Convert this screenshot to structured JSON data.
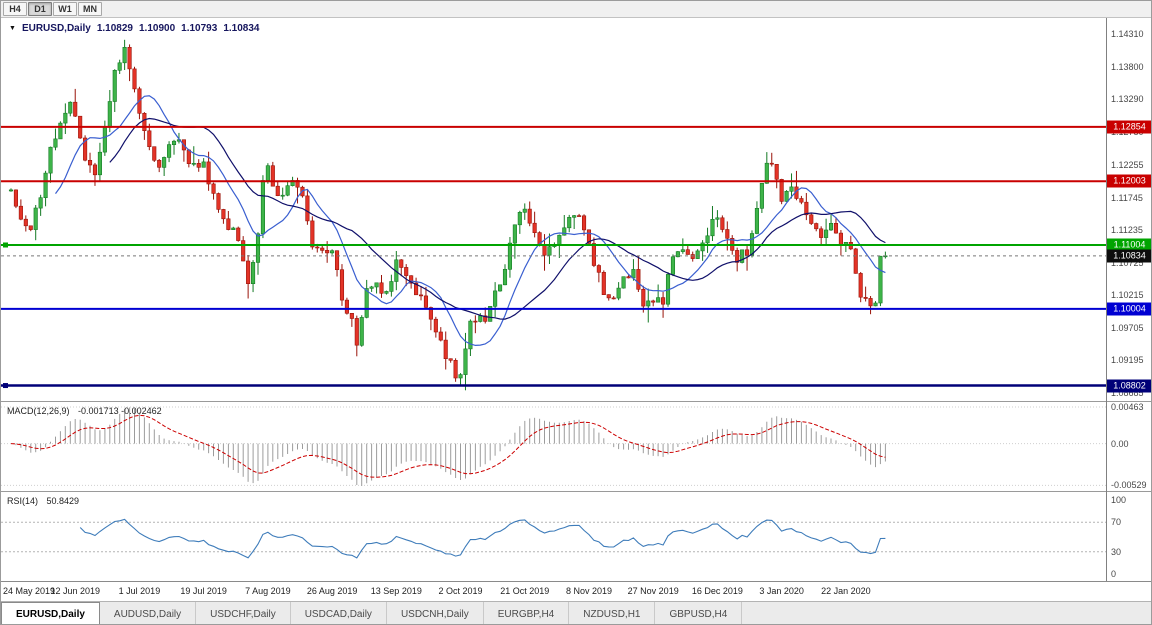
{
  "toolbar": {
    "timeframes": [
      {
        "label": "H4",
        "active": false
      },
      {
        "label": "D1",
        "active": true
      },
      {
        "label": "W1",
        "active": false
      },
      {
        "label": "MN",
        "active": false
      }
    ]
  },
  "titlebar": {
    "symbol": "EURUSD,Daily",
    "open": "1.10829",
    "high": "1.10900",
    "low": "1.10793",
    "close": "1.10834"
  },
  "chart_data": {
    "type": "candlestick",
    "symbol": "EURUSD",
    "timeframe": "Daily",
    "bars": 178,
    "view": {
      "price_min": 1.0856,
      "price_max": 1.1456
    },
    "price_path_anchors": [
      [
        0,
        1.1185
      ],
      [
        2,
        1.114
      ],
      [
        4,
        1.1125
      ],
      [
        6,
        1.118
      ],
      [
        8,
        1.125
      ],
      [
        10,
        1.129
      ],
      [
        12,
        1.132
      ],
      [
        13,
        1.131
      ],
      [
        15,
        1.123
      ],
      [
        17,
        1.121
      ],
      [
        19,
        1.129
      ],
      [
        21,
        1.137
      ],
      [
        23,
        1.1405
      ],
      [
        25,
        1.135
      ],
      [
        26,
        1.13
      ],
      [
        28,
        1.126
      ],
      [
        30,
        1.122
      ],
      [
        32,
        1.125
      ],
      [
        34,
        1.127
      ],
      [
        36,
        1.123
      ],
      [
        39,
        1.1225
      ],
      [
        41,
        1.118
      ],
      [
        43,
        1.114
      ],
      [
        45,
        1.112
      ],
      [
        47,
        1.108
      ],
      [
        48,
        1.104
      ],
      [
        49,
        1.108
      ],
      [
        50,
        1.111
      ],
      [
        51,
        1.12
      ],
      [
        52,
        1.122
      ],
      [
        53,
        1.119
      ],
      [
        55,
        1.118
      ],
      [
        57,
        1.12
      ],
      [
        59,
        1.117
      ],
      [
        61,
        1.11
      ],
      [
        63,
        1.109
      ],
      [
        65,
        1.1095
      ],
      [
        67,
        1.102
      ],
      [
        69,
        1.098
      ],
      [
        70,
        1.094
      ],
      [
        71,
        1.099
      ],
      [
        72,
        1.103
      ],
      [
        74,
        1.104
      ],
      [
        76,
        1.102
      ],
      [
        78,
        1.107
      ],
      [
        80,
        1.106
      ],
      [
        82,
        1.103
      ],
      [
        84,
        1.101
      ],
      [
        86,
        1.096
      ],
      [
        88,
        1.093
      ],
      [
        90,
        1.09
      ],
      [
        91,
        1.089
      ],
      [
        93,
        1.0975
      ],
      [
        96,
        1.0985
      ],
      [
        99,
        1.104
      ],
      [
        102,
        1.113
      ],
      [
        104,
        1.116
      ],
      [
        106,
        1.112
      ],
      [
        108,
        1.1085
      ],
      [
        111,
        1.111
      ],
      [
        113,
        1.115
      ],
      [
        115,
        1.115
      ],
      [
        116,
        1.112
      ],
      [
        118,
        1.107
      ],
      [
        120,
        1.103
      ],
      [
        122,
        1.101
      ],
      [
        124,
        1.105
      ],
      [
        126,
        1.106
      ],
      [
        128,
        1.101
      ],
      [
        130,
        1.1005
      ],
      [
        132,
        1.1015
      ],
      [
        134,
        1.108
      ],
      [
        136,
        1.11
      ],
      [
        138,
        1.1085
      ],
      [
        140,
        1.111
      ],
      [
        142,
        1.1135
      ],
      [
        143,
        1.1145
      ],
      [
        145,
        1.1115
      ],
      [
        147,
        1.108
      ],
      [
        149,
        1.109
      ],
      [
        151,
        1.115
      ],
      [
        153,
        1.1235
      ],
      [
        155,
        1.121
      ],
      [
        156,
        1.1175
      ],
      [
        158,
        1.1195
      ],
      [
        160,
        1.116
      ],
      [
        162,
        1.113
      ],
      [
        164,
        1.1115
      ],
      [
        166,
        1.1135
      ],
      [
        168,
        1.1105
      ],
      [
        170,
        1.109
      ],
      [
        172,
        1.1025
      ],
      [
        174,
        1.1
      ],
      [
        175,
        1.1003
      ],
      [
        176,
        1.108
      ],
      [
        177,
        1.10834
      ]
    ],
    "wick_extremes": [
      {
        "bar": 23,
        "high": 1.1412
      },
      {
        "bar": 70,
        "low": 1.0926
      },
      {
        "bar": 91,
        "low": 1.0879
      },
      {
        "bar": 153,
        "high": 1.1239
      },
      {
        "bar": 174,
        "low": 1.0992
      }
    ],
    "last_candle": {
      "open": 1.10829,
      "high": 1.109,
      "low": 1.10793,
      "close": 1.10834
    },
    "moving_averages": [
      {
        "period": 10,
        "color": "#3a5fd0"
      },
      {
        "period": 21,
        "color": "#10106a"
      }
    ],
    "horizontal_lines": [
      {
        "value": 1.12854,
        "label": "1.12854",
        "color_key": "hline_red",
        "width": 2,
        "left_marker": false
      },
      {
        "value": 1.12003,
        "label": "1.12003",
        "color_key": "hline_red",
        "width": 2,
        "left_marker": false
      },
      {
        "value": 1.11004,
        "label": "1.11004",
        "color_key": "hline_green",
        "width": 2,
        "left_marker": true
      },
      {
        "value": 1.10004,
        "label": "1.10004",
        "color_key": "hline_blue",
        "width": 2,
        "left_marker": false
      },
      {
        "value": 1.08802,
        "label": "1.08802",
        "color_key": "hline_navy",
        "width": 2.5,
        "left_marker": true
      }
    ],
    "current_price": {
      "value": 1.10834,
      "label": "1.10834"
    },
    "price_axis_labels": [
      {
        "text": "1.14310",
        "value": 1.1431
      },
      {
        "text": "1.13800",
        "value": 1.138
      },
      {
        "text": "1.13290",
        "value": 1.1329
      },
      {
        "text": "1.12780",
        "value": 1.1278
      },
      {
        "text": "1.12255",
        "value": 1.12255
      },
      {
        "text": "1.11745",
        "value": 1.11745
      },
      {
        "text": "1.11235",
        "value": 1.11235
      },
      {
        "text": "1.10725",
        "value": 1.10725
      },
      {
        "text": "1.10215",
        "value": 1.10215
      },
      {
        "text": "1.09705",
        "value": 1.09705
      },
      {
        "text": "1.09195",
        "value": 1.09195
      },
      {
        "text": "1.08685",
        "value": 1.08685
      }
    ],
    "date_axis_labels": [
      {
        "text": "24 May 2019",
        "bar": 0
      },
      {
        "text": "12 Jun 2019",
        "bar": 13
      },
      {
        "text": "1 Jul 2019",
        "bar": 26
      },
      {
        "text": "19 Jul 2019",
        "bar": 39
      },
      {
        "text": "7 Aug 2019",
        "bar": 52
      },
      {
        "text": "26 Aug 2019",
        "bar": 65
      },
      {
        "text": "13 Sep 2019",
        "bar": 78
      },
      {
        "text": "2 Oct 2019",
        "bar": 91
      },
      {
        "text": "21 Oct 2019",
        "bar": 104
      },
      {
        "text": "8 Nov 2019",
        "bar": 117
      },
      {
        "text": "27 Nov 2019",
        "bar": 130
      },
      {
        "text": "16 Dec 2019",
        "bar": 143
      },
      {
        "text": "3 Jan 2020",
        "bar": 156
      },
      {
        "text": "22 Jan 2020",
        "bar": 169
      }
    ],
    "indicators": {
      "macd": {
        "label": "MACD(12,26,9)",
        "values_text": "-0.001713 -0.002462",
        "fast": 12,
        "slow": 26,
        "signal_period": 9,
        "axis_labels": [
          {
            "text": "0.00463",
            "value": 0.00463
          },
          {
            "text": "0.00",
            "value": 0
          },
          {
            "text": "-0.00529",
            "value": -0.00529
          }
        ]
      },
      "rsi": {
        "label": "RSI(14)",
        "value_text": "50.8429",
        "period": 14,
        "levels": [
          70,
          30
        ],
        "axis_labels": [
          {
            "text": "100",
            "value": 100
          },
          {
            "text": "70",
            "value": 70
          },
          {
            "text": "30",
            "value": 30
          },
          {
            "text": "0",
            "value": 0
          }
        ]
      }
    }
  },
  "tabs": [
    {
      "label": "EURUSD,Daily",
      "active": true
    },
    {
      "label": "AUDUSD,Daily",
      "active": false
    },
    {
      "label": "USDCHF,Daily",
      "active": false
    },
    {
      "label": "USDCAD,Daily",
      "active": false
    },
    {
      "label": "USDCNH,Daily",
      "active": false
    },
    {
      "label": "EURGBP,H4",
      "active": false
    },
    {
      "label": "NZDUSD,H1",
      "active": false
    },
    {
      "label": "GBPUSD,H4",
      "active": false
    }
  ],
  "colors": {
    "candle_up_fill": "#3eb449",
    "candle_up_stroke": "#137a23",
    "candle_down_fill": "#e33327",
    "candle_down_stroke": "#991309",
    "hline_red": "#c90000",
    "hline_green": "#00a400",
    "hline_blue": "#0000d2",
    "hline_navy": "#000078",
    "current_badge": "#0d0d0d",
    "macd_hist": "#9c9c9c",
    "macd_signal": "#cc0000",
    "rsi_line": "#3e7cba",
    "level_dash": "#b4b4b4"
  }
}
